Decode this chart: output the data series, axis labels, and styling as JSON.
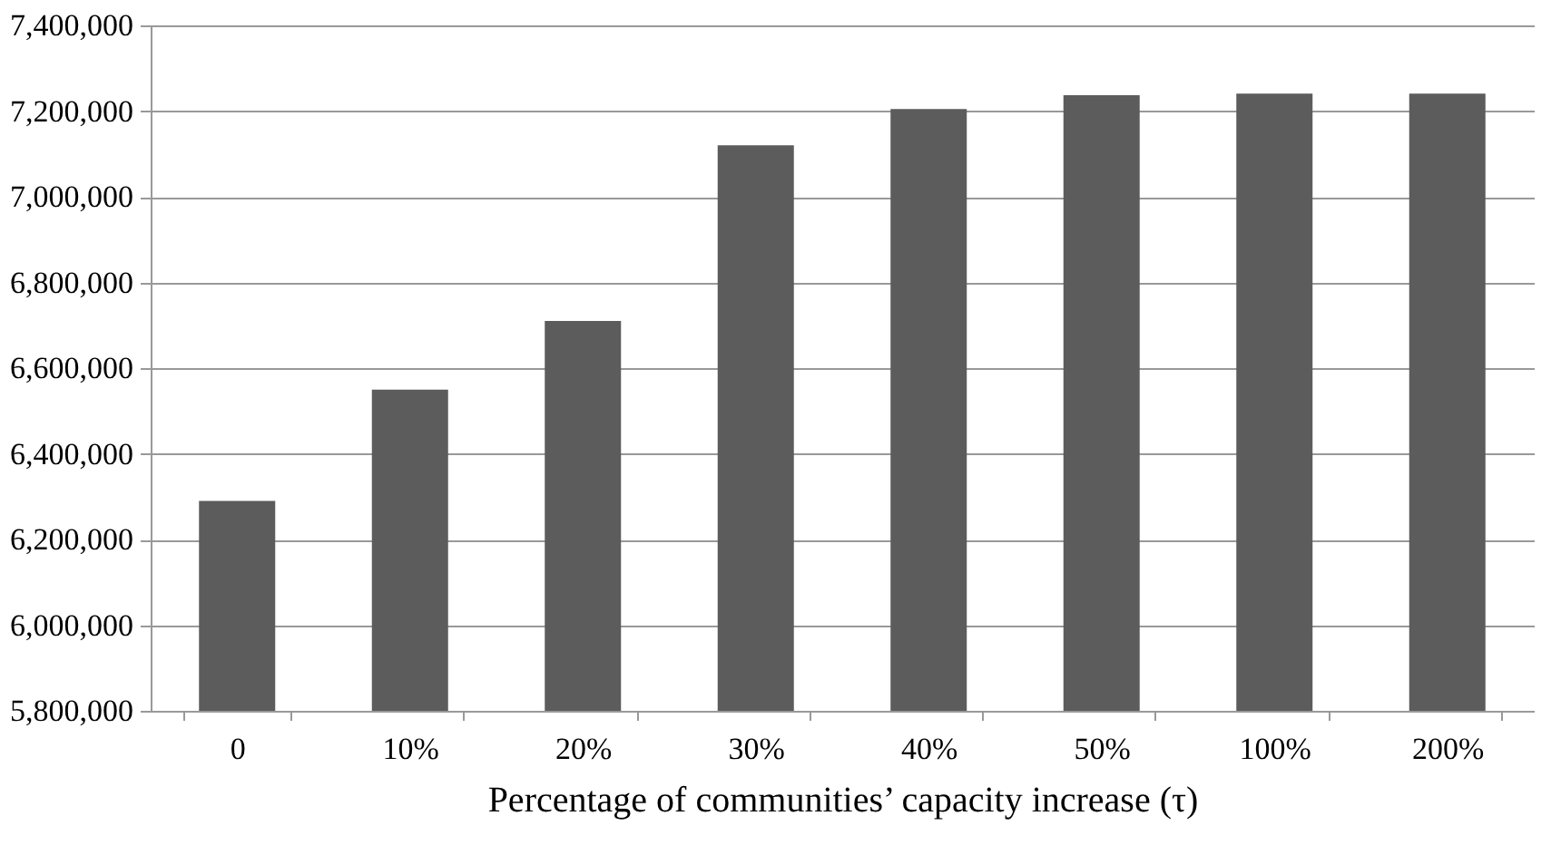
{
  "chart_data": {
    "type": "bar",
    "xlabel": "Percentage of communities’ capacity increase (τ)",
    "categories": [
      "0",
      "10%",
      "20%",
      "30%",
      "40%",
      "50%",
      "100%",
      "200%"
    ],
    "values": [
      6290000,
      6550000,
      6710000,
      7120000,
      7205000,
      7237000,
      7241000,
      7241000
    ],
    "color": "#5c5c5c",
    "ylim": [
      5800000,
      7400000
    ],
    "yticks": [
      {
        "value": 5800000,
        "label": "5,800,000"
      },
      {
        "value": 6000000,
        "label": "6,000,000"
      },
      {
        "value": 6200000,
        "label": "6,200,000"
      },
      {
        "value": 6400000,
        "label": "6,400,000"
      },
      {
        "value": 6600000,
        "label": "6,600,000"
      },
      {
        "value": 6800000,
        "label": "6,800,000"
      },
      {
        "value": 7000000,
        "label": "7,000,000"
      },
      {
        "value": 7200000,
        "label": "7,200,000"
      },
      {
        "value": 7400000,
        "label": "7,400,000"
      }
    ],
    "grid": "y"
  }
}
